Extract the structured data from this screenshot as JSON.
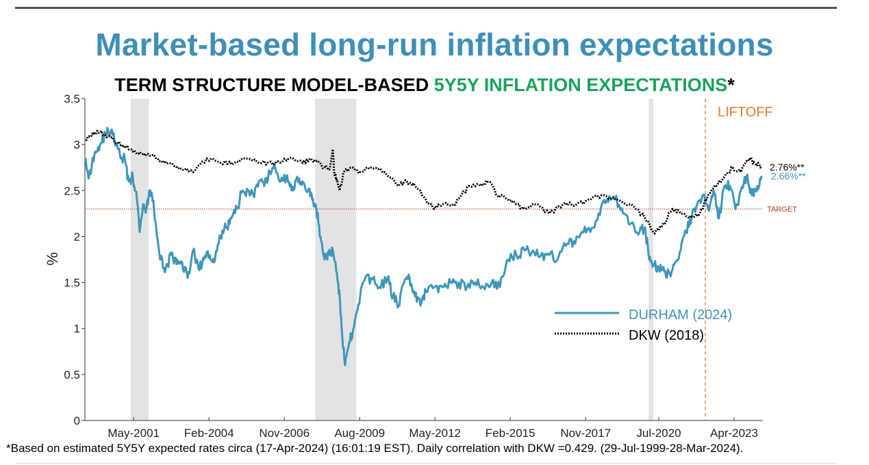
{
  "title": "Market-based long-run inflation expectations",
  "subtitle": {
    "prefix": "TERM STRUCTURE MODEL-BASED ",
    "highlight": "5Y5Y INFLATION EXPECTATIONS",
    "suffix": "*"
  },
  "footnote": "*Based on estimated 5Y5Y expected rates circa (17-Apr-2024) (16:01:19 EST). Daily correlation with DKW =0.429. (29-Jul-1999-28-Mar-2024).",
  "colors": {
    "durham": "#3f96b8",
    "dkw": "#000000",
    "target": "#b03a2e",
    "liftoff": "#f07b2e",
    "recession": "#e3e3e3",
    "highlight": "#1aa35f",
    "title": "#3f8fb6"
  },
  "chart_data": {
    "type": "line",
    "ylabel": "%",
    "xlabel": "",
    "xlim": [
      1999.55,
      2024.3
    ],
    "ylim": [
      0,
      3.5
    ],
    "yticks": [
      0,
      0.5,
      1,
      1.5,
      2,
      2.5,
      3,
      3.5
    ],
    "ytick_labels": [
      "0",
      "0.5",
      "1",
      "1.5",
      "2",
      "2.5",
      "3",
      "3.5"
    ],
    "xticks": [
      {
        "value": 2001.33,
        "label": "May-2001"
      },
      {
        "value": 2004.08,
        "label": "Feb-2004"
      },
      {
        "value": 2006.83,
        "label": "Nov-2006"
      },
      {
        "value": 2009.58,
        "label": "Aug-2009"
      },
      {
        "value": 2012.33,
        "label": "May-2012"
      },
      {
        "value": 2015.08,
        "label": "Feb-2015"
      },
      {
        "value": 2017.83,
        "label": "Nov-2017"
      },
      {
        "value": 2020.5,
        "label": "Jul-2020"
      },
      {
        "value": 2023.25,
        "label": "Apr-2023"
      }
    ],
    "recessions": [
      {
        "start": 2001.22,
        "end": 2001.88
      },
      {
        "start": 2007.96,
        "end": 2009.46
      },
      {
        "start": 2020.13,
        "end": 2020.3
      }
    ],
    "target": {
      "value": 2.3,
      "label": "TARGET"
    },
    "liftoff": {
      "value": 2022.2,
      "label": "LIFTOFF"
    },
    "series": [
      {
        "name": "DURHAM (2024)",
        "style": "solid",
        "end_label": "2.66%**",
        "x": [
          1999.58,
          1999.7,
          1999.9,
          2000.1,
          2000.3,
          2000.5,
          2000.7,
          2000.85,
          2001.0,
          2001.15,
          2001.3,
          2001.45,
          2001.55,
          2001.7,
          2001.8,
          2001.9,
          2002.0,
          2002.15,
          2002.3,
          2002.5,
          2002.7,
          2002.9,
          2003.1,
          2003.3,
          2003.5,
          2003.7,
          2003.9,
          2004.1,
          2004.3,
          2004.5,
          2004.7,
          2004.9,
          2005.1,
          2005.3,
          2005.5,
          2005.7,
          2005.9,
          2006.1,
          2006.3,
          2006.5,
          2006.7,
          2006.9,
          2007.1,
          2007.3,
          2007.5,
          2007.7,
          2007.85,
          2008.0,
          2008.15,
          2008.3,
          2008.45,
          2008.6,
          2008.75,
          2008.85,
          2008.95,
          2009.05,
          2009.2,
          2009.35,
          2009.5,
          2009.7,
          2010.0,
          2010.3,
          2010.6,
          2010.8,
          2011.0,
          2011.2,
          2011.4,
          2011.6,
          2011.8,
          2012.0,
          2012.3,
          2012.6,
          2012.9,
          2013.2,
          2013.5,
          2013.8,
          2014.1,
          2014.4,
          2014.7,
          2015.0,
          2015.3,
          2015.6,
          2015.9,
          2016.2,
          2016.5,
          2016.8,
          2017.1,
          2017.4,
          2017.7,
          2018.0,
          2018.3,
          2018.6,
          2018.9,
          2019.2,
          2019.5,
          2019.8,
          2020.0,
          2020.15,
          2020.3,
          2020.5,
          2020.7,
          2020.9,
          2021.1,
          2021.3,
          2021.5,
          2021.7,
          2021.9,
          2022.1,
          2022.3,
          2022.5,
          2022.7,
          2022.9,
          2023.1,
          2023.3,
          2023.5,
          2023.7,
          2023.9,
          2024.1,
          2024.25
        ],
        "values": [
          2.85,
          2.65,
          2.9,
          3.0,
          3.12,
          3.15,
          3.0,
          2.85,
          2.85,
          2.6,
          2.65,
          2.4,
          2.05,
          2.35,
          2.3,
          2.5,
          2.45,
          2.1,
          1.75,
          1.65,
          1.8,
          1.7,
          1.72,
          1.55,
          1.85,
          1.65,
          1.75,
          1.8,
          1.75,
          2.0,
          2.1,
          2.2,
          2.3,
          2.5,
          2.5,
          2.45,
          2.6,
          2.55,
          2.7,
          2.75,
          2.6,
          2.65,
          2.5,
          2.65,
          2.6,
          2.5,
          2.4,
          2.3,
          2.0,
          1.75,
          1.8,
          1.85,
          1.6,
          1.35,
          0.9,
          0.6,
          0.85,
          1.0,
          1.2,
          1.5,
          1.55,
          1.45,
          1.55,
          1.35,
          1.25,
          1.5,
          1.55,
          1.35,
          1.25,
          1.4,
          1.45,
          1.45,
          1.5,
          1.5,
          1.45,
          1.5,
          1.45,
          1.5,
          1.45,
          1.75,
          1.8,
          1.85,
          1.85,
          1.8,
          1.8,
          1.75,
          1.9,
          1.95,
          2.05,
          2.05,
          2.25,
          2.4,
          2.42,
          2.25,
          2.15,
          2.05,
          2.1,
          1.75,
          1.7,
          1.65,
          1.62,
          1.6,
          1.72,
          1.85,
          2.05,
          2.2,
          2.35,
          2.45,
          2.3,
          2.5,
          2.2,
          2.55,
          2.55,
          2.3,
          2.5,
          2.65,
          2.45,
          2.55,
          2.66
        ]
      },
      {
        "name": "DKW (2018)",
        "style": "dotted",
        "end_label": "2.76%**",
        "x": [
          1999.58,
          1999.8,
          2000.0,
          2000.3,
          2000.6,
          2000.9,
          2001.2,
          2001.5,
          2001.8,
          2002.2,
          2002.6,
          2003.0,
          2003.5,
          2004.0,
          2004.5,
          2005.0,
          2005.5,
          2006.0,
          2006.5,
          2007.0,
          2007.5,
          2007.8,
          2008.1,
          2008.3,
          2008.5,
          2008.6,
          2008.65,
          2008.75,
          2008.85,
          2009.0,
          2009.3,
          2009.6,
          2010.0,
          2010.5,
          2011.0,
          2011.3,
          2011.6,
          2012.0,
          2012.3,
          2012.6,
          2013.0,
          2013.3,
          2013.6,
          2014.0,
          2014.3,
          2014.6,
          2015.0,
          2015.3,
          2015.6,
          2016.0,
          2016.5,
          2017.0,
          2017.5,
          2018.0,
          2018.5,
          2019.0,
          2019.5,
          2020.0,
          2020.3,
          2020.6,
          2021.0,
          2021.3,
          2021.6,
          2022.0,
          2022.3,
          2022.6,
          2022.9,
          2023.2,
          2023.5,
          2023.8,
          2024.0,
          2024.25
        ],
        "values": [
          3.05,
          3.1,
          3.15,
          3.1,
          3.05,
          3.0,
          2.95,
          2.9,
          2.9,
          2.85,
          2.8,
          2.75,
          2.7,
          2.85,
          2.8,
          2.8,
          2.85,
          2.8,
          2.8,
          2.85,
          2.8,
          2.85,
          2.8,
          2.75,
          2.75,
          2.95,
          2.7,
          2.6,
          2.5,
          2.7,
          2.75,
          2.7,
          2.75,
          2.7,
          2.55,
          2.6,
          2.55,
          2.4,
          2.3,
          2.35,
          2.35,
          2.45,
          2.55,
          2.55,
          2.6,
          2.45,
          2.4,
          2.35,
          2.3,
          2.35,
          2.25,
          2.35,
          2.35,
          2.4,
          2.45,
          2.4,
          2.35,
          2.2,
          2.05,
          2.1,
          2.3,
          2.25,
          2.2,
          2.25,
          2.45,
          2.55,
          2.65,
          2.75,
          2.7,
          2.85,
          2.8,
          2.76
        ]
      }
    ]
  }
}
